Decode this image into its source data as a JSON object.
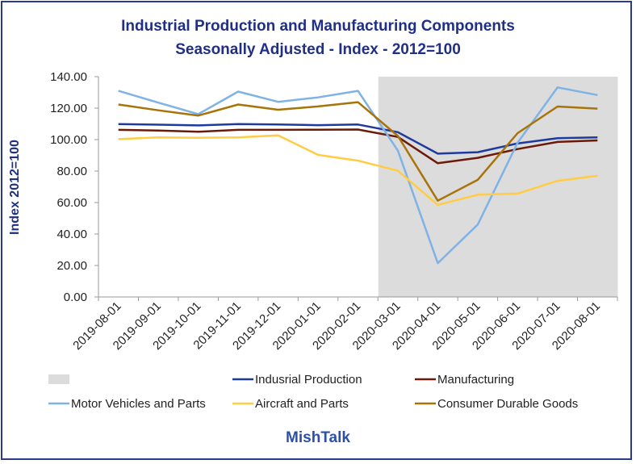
{
  "chart_data": {
    "type": "line",
    "title": "Industrial Production and Manufacturing Components",
    "subtitle": "Seasonally Adjusted - Index - 2012=100",
    "ylabel": "Index 2012=100",
    "ylim": [
      0,
      140
    ],
    "yticks": [
      "0.00",
      "20.00",
      "40.00",
      "60.00",
      "80.00",
      "100.00",
      "120.00",
      "140.00"
    ],
    "x": [
      "2019-08-01",
      "2019-09-01",
      "2019-10-01",
      "2019-11-01",
      "2019-12-01",
      "2020-01-01",
      "2020-02-01",
      "2020-03-01",
      "2020-04-01",
      "2020-05-01",
      "2020-06-01",
      "2020-07-01",
      "2020-08-01"
    ],
    "recession_shading": {
      "start": "2020-03-01",
      "end": "2020-08-01",
      "color": "#dcdcdc"
    },
    "series": [
      {
        "name": "Indusrial Production",
        "color": "#1f3a9e",
        "values": [
          109.9,
          109.5,
          109.0,
          109.9,
          109.6,
          109.2,
          109.6,
          104.7,
          91.1,
          92.0,
          97.6,
          100.9,
          101.4
        ]
      },
      {
        "name": "Manufacturing",
        "color": "#6b1a0a",
        "values": [
          106.2,
          105.8,
          105.0,
          106.2,
          106.2,
          106.3,
          106.4,
          101.7,
          85.0,
          88.4,
          94.0,
          98.5,
          99.5
        ]
      },
      {
        "name": "Motor Vehicles and Parts",
        "color": "#7fb2e5",
        "values": [
          131.0,
          123.5,
          116.2,
          130.5,
          124.0,
          126.8,
          131.0,
          93.0,
          21.5,
          46.0,
          98.0,
          133.2,
          128.3
        ]
      },
      {
        "name": "Aircraft and Parts",
        "color": "#ffcc44",
        "values": [
          100.3,
          101.4,
          101.2,
          101.4,
          102.7,
          90.3,
          86.6,
          80.2,
          58.5,
          65.0,
          65.7,
          73.8,
          77.0
        ]
      },
      {
        "name": "Consumer Durable Goods",
        "color": "#a87409",
        "values": [
          122.3,
          118.6,
          115.3,
          122.3,
          119.0,
          121.1,
          123.8,
          102.3,
          61.2,
          74.4,
          104.1,
          121.0,
          119.7
        ]
      }
    ],
    "legend_placement": "bottom",
    "grid": false
  },
  "footer": "MishTalk"
}
